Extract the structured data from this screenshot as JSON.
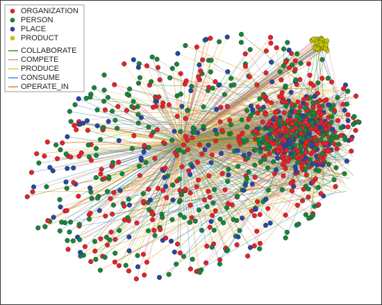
{
  "legend": {
    "node_types": [
      {
        "label": "ORGANIZATION",
        "color": "#e8202a"
      },
      {
        "label": "PERSON",
        "color": "#16843a"
      },
      {
        "label": "PLACE",
        "color": "#2846a6"
      },
      {
        "label": "PRODUCT",
        "color": "#c4c400"
      }
    ],
    "edge_types": [
      {
        "label": "COLLABORATE",
        "color": "#3a8a2e"
      },
      {
        "label": "COMPETE",
        "color": "#e78aa2"
      },
      {
        "label": "PRODUCE",
        "color": "#d6cf3c"
      },
      {
        "label": "CONSUME",
        "color": "#3a8ad6"
      },
      {
        "label": "OPERATE_IN",
        "color": "#f0801e"
      }
    ]
  }
}
